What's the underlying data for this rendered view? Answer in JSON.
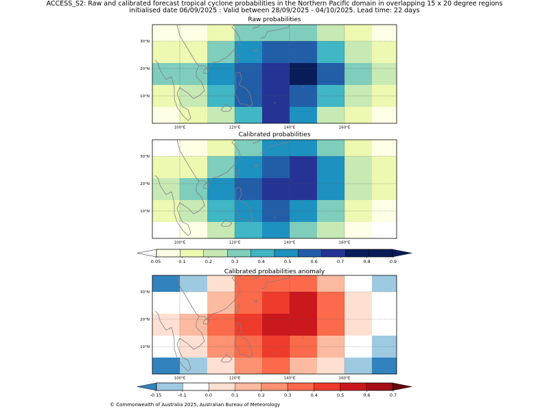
{
  "header": {
    "title_line1": "ACCESS_S2: Raw and calibrated forecast tropical cyclone probabilities in the Northern Pacific domain in overlapping 15 x 20 degree regions",
    "title_line2": "initialised date 06/09/2025 :  Valid between 28/09/2025 - 04/10/2025. Lead time: 22 days"
  },
  "footer": {
    "copyright": "© Commonwealth of Australia 2025, Australian Bureau of Meteorology"
  },
  "colors": {
    "coast": "#7f7f7f",
    "prob_scale": [
      "#ffffe5",
      "#edf8b1",
      "#c7e9b4",
      "#7fcdbb",
      "#41b6c4",
      "#1d91c0",
      "#225ea8",
      "#253494",
      "#081d58"
    ],
    "prob_under": "#ffffff",
    "prob_over": "#081d58",
    "anom_scale": [
      "#3182bd",
      "#9ecae1",
      "#ffffff",
      "#fee0d2",
      "#fcbba1",
      "#fc9272",
      "#fb6a4a",
      "#ef3b2c",
      "#cb181d",
      "#a50f15"
    ],
    "anom_under": "#3182bd",
    "anom_over": "#67000d"
  },
  "axes": {
    "lon_labels": [
      "100°E",
      "120°E",
      "140°E",
      "160°E"
    ],
    "lat_labels": [
      "30°N",
      "20°N",
      "10°N"
    ]
  },
  "panels": {
    "raw": {
      "title": "Raw probabilities"
    },
    "cal": {
      "title": "Calibrated probabilities"
    },
    "anom": {
      "title": "Calibrated probabilities anomaly"
    }
  },
  "colorbars": {
    "prob_ticks": [
      "0.05",
      "0.1",
      "0.2",
      "0.3",
      "0.4",
      "0.5",
      "0.6",
      "0.7",
      "0.8",
      "0.9"
    ],
    "anom_ticks": [
      "-0.15",
      "-0.1",
      "0.0",
      "0.1",
      "0.2",
      "0.3",
      "0.4",
      "0.5",
      "0.6",
      "0.7"
    ]
  },
  "map_grid": {
    "lon_edges": [
      90,
      100,
      110,
      120,
      130,
      140,
      150,
      160,
      170,
      180
    ],
    "lat_edges": [
      0,
      6,
      14,
      22,
      30,
      36
    ],
    "raw_levels": [
      [
        0,
        1,
        2,
        4,
        7,
        5,
        2,
        1,
        0
      ],
      [
        1,
        2,
        4,
        6,
        7,
        6,
        4,
        2,
        1
      ],
      [
        3,
        3,
        5,
        6,
        7,
        8,
        6,
        3,
        2
      ],
      [
        1,
        1,
        3,
        5,
        6,
        6,
        4,
        2,
        1
      ],
      [
        0,
        0,
        1,
        3,
        3,
        3,
        2,
        1,
        0
      ]
    ],
    "cal_levels": [
      [
        -1,
        0,
        2,
        4,
        5,
        3,
        2,
        0,
        -1
      ],
      [
        1,
        2,
        4,
        5,
        6,
        5,
        3,
        1,
        0
      ],
      [
        2,
        3,
        5,
        6,
        7,
        7,
        5,
        2,
        1
      ],
      [
        1,
        1,
        3,
        5,
        6,
        7,
        5,
        2,
        1
      ],
      [
        -1,
        0,
        1,
        3,
        5,
        5,
        3,
        1,
        0
      ]
    ],
    "anom_levels": [
      [
        0,
        1,
        3,
        5,
        6,
        4,
        3,
        1,
        0
      ],
      [
        2,
        3,
        5,
        6,
        7,
        6,
        4,
        2,
        1
      ],
      [
        3,
        4,
        6,
        7,
        8,
        8,
        6,
        3,
        2
      ],
      [
        2,
        2,
        4,
        6,
        7,
        8,
        6,
        3,
        2
      ],
      [
        0,
        1,
        3,
        6,
        6,
        6,
        4,
        2,
        1
      ]
    ]
  }
}
